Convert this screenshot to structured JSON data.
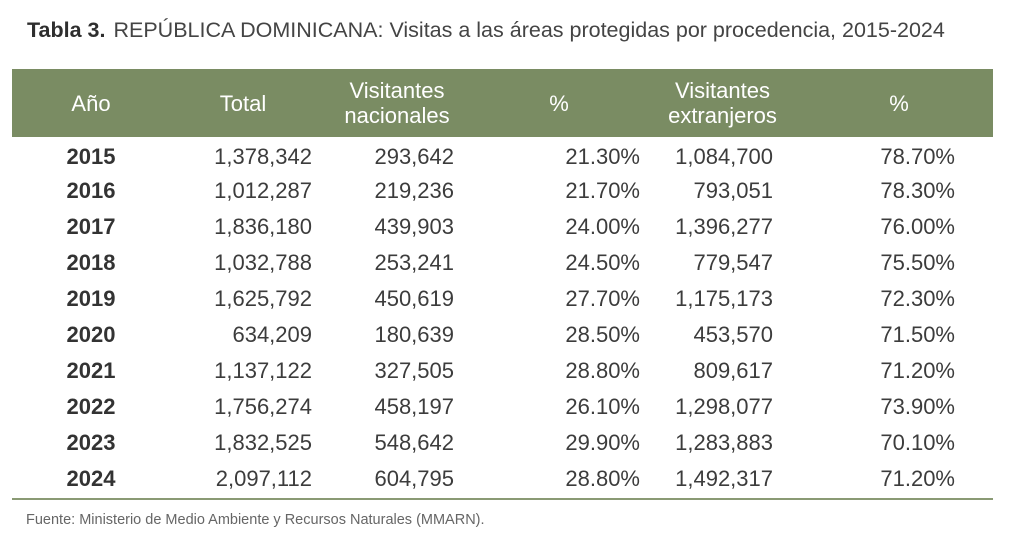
{
  "title": {
    "label": "Tabla 3.",
    "text": "REPÚBLICA DOMINICANA: Visitas a las áreas protegidas por procedencia, 2015-2024"
  },
  "table": {
    "headers": {
      "year": "Año",
      "total": "Total",
      "nacionales_line1": "Visitantes",
      "nacionales_line2": "nacionales",
      "pct_nacionales": "%",
      "extranjeros_line1": "Visitantes",
      "extranjeros_line2": "extranjeros",
      "pct_extranjeros": "%"
    },
    "rows": [
      {
        "year": "2015",
        "total": "1,378,342",
        "nacionales": "293,642",
        "pct_nac": "21.30%",
        "extranjeros": "1,084,700",
        "pct_ext": "78.70%"
      },
      {
        "year": "2016",
        "total": "1,012,287",
        "nacionales": "219,236",
        "pct_nac": "21.70%",
        "extranjeros": "793,051",
        "pct_ext": "78.30%"
      },
      {
        "year": "2017",
        "total": "1,836,180",
        "nacionales": "439,903",
        "pct_nac": "24.00%",
        "extranjeros": "1,396,277",
        "pct_ext": "76.00%"
      },
      {
        "year": "2018",
        "total": "1,032,788",
        "nacionales": "253,241",
        "pct_nac": "24.50%",
        "extranjeros": "779,547",
        "pct_ext": "75.50%"
      },
      {
        "year": "2019",
        "total": "1,625,792",
        "nacionales": "450,619",
        "pct_nac": "27.70%",
        "extranjeros": "1,175,173",
        "pct_ext": "72.30%"
      },
      {
        "year": "2020",
        "total": "634,209",
        "nacionales": "180,639",
        "pct_nac": "28.50%",
        "extranjeros": "453,570",
        "pct_ext": "71.50%"
      },
      {
        "year": "2021",
        "total": "1,137,122",
        "nacionales": "327,505",
        "pct_nac": "28.80%",
        "extranjeros": "809,617",
        "pct_ext": "71.20%"
      },
      {
        "year": "2022",
        "total": "1,756,274",
        "nacionales": "458,197",
        "pct_nac": "26.10%",
        "extranjeros": "1,298,077",
        "pct_ext": "73.90%"
      },
      {
        "year": "2023",
        "total": "1,832,525",
        "nacionales": "548,642",
        "pct_nac": "29.90%",
        "extranjeros": "1,283,883",
        "pct_ext": "70.10%"
      },
      {
        "year": "2024",
        "total": "2,097,112",
        "nacionales": "604,795",
        "pct_nac": "28.80%",
        "extranjeros": "1,492,317",
        "pct_ext": "71.20%"
      }
    ]
  },
  "source": "Fuente: Ministerio de Medio Ambiente y Recursos Naturales (MMARN).",
  "colors": {
    "header_bg": "#7a8c63",
    "header_text": "#ffffff",
    "rule": "#8a9a74"
  }
}
